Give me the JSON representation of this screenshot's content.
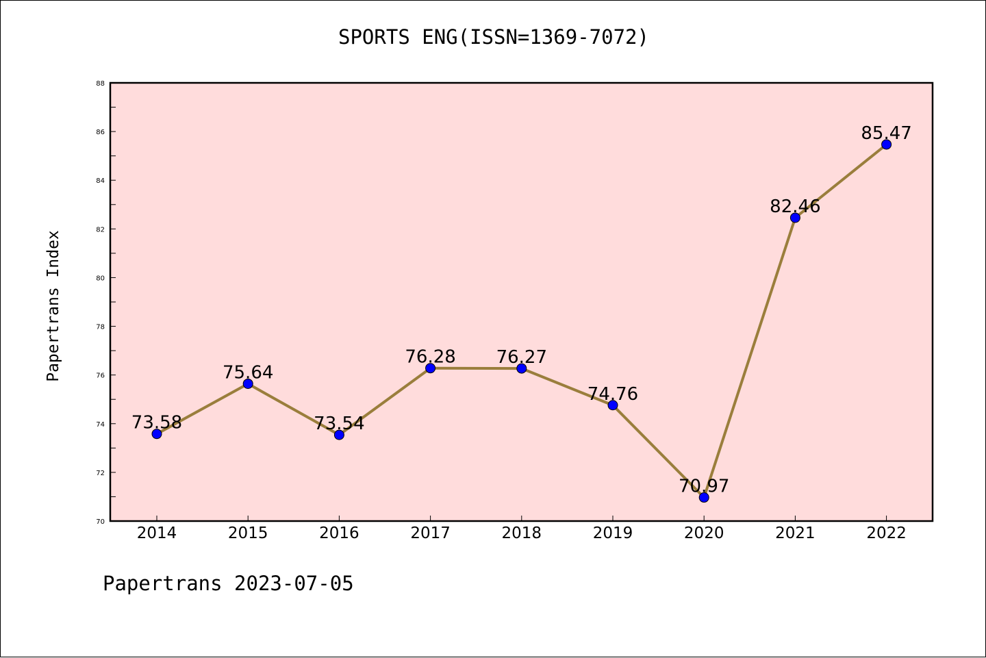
{
  "chart_data": {
    "type": "line",
    "title": "SPORTS ENG(ISSN=1369-7072)",
    "xlabel": "",
    "ylabel": "Papertrans Index",
    "x": [
      "2014",
      "2015",
      "2016",
      "2017",
      "2018",
      "2019",
      "2020",
      "2021",
      "2022"
    ],
    "series": [
      {
        "values": [
          73.58,
          75.64,
          73.54,
          76.28,
          76.27,
          74.76,
          70.97,
          82.46,
          85.47
        ],
        "labels": [
          "73.58",
          "75.64",
          "73.54",
          "76.28",
          "76.27",
          "74.76",
          "70.97",
          "82.46",
          "85.47"
        ],
        "line_color": "#9a7e3c",
        "marker_color": "#0000ff"
      }
    ],
    "ylim": [
      70,
      88
    ],
    "yticks": [
      "70",
      "72",
      "74",
      "76",
      "78",
      "80",
      "82",
      "84",
      "86",
      "88"
    ],
    "grid": false,
    "legend": "none",
    "plot_background": "#ffdcdc"
  },
  "footer": {
    "text": "Papertrans 2023-07-05"
  }
}
